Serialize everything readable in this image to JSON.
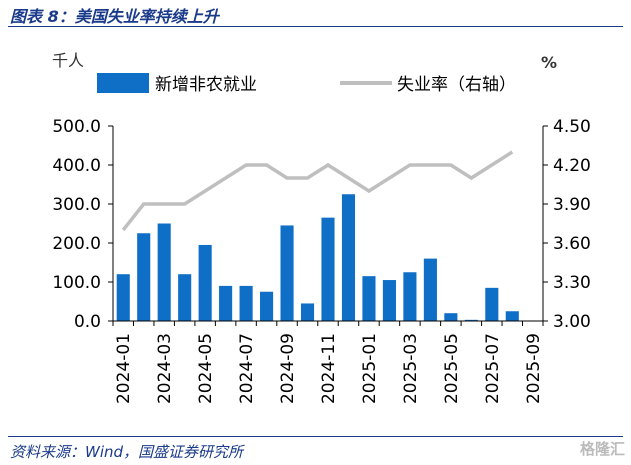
{
  "header": {
    "title": "图表 8：美国失业率持续上升"
  },
  "footer": {
    "source": "资料来源：Wind，国盛证券研究所",
    "watermark": "格隆汇"
  },
  "chart_data": {
    "type": "bar",
    "left_unit": "千人",
    "right_unit": "%",
    "categories": [
      "2024-01",
      "2024-02",
      "2024-03",
      "2024-04",
      "2024-05",
      "2024-06",
      "2024-07",
      "2024-08",
      "2024-09",
      "2024-10",
      "2024-11",
      "2024-12",
      "2025-01",
      "2025-02",
      "2025-03",
      "2025-04",
      "2025-05",
      "2025-06",
      "2025-07",
      "2025-08",
      "2025-09"
    ],
    "tick_labels": [
      "2024-01",
      "2024-03",
      "2024-05",
      "2024-07",
      "2024-09",
      "2024-11",
      "2025-01",
      "2025-03",
      "2025-05",
      "2025-07",
      "2025-09"
    ],
    "series": [
      {
        "name": "新增非农就业",
        "type": "bar",
        "axis": "left",
        "color": "#0f6fc6",
        "values": [
          120,
          225,
          250,
          120,
          195,
          90,
          90,
          75,
          245,
          45,
          265,
          325,
          115,
          105,
          125,
          160,
          20,
          3,
          85,
          25,
          null
        ]
      },
      {
        "name": "失业率（右轴）",
        "type": "line",
        "axis": "right",
        "color": "#bfbfbf",
        "values": [
          3.7,
          3.9,
          3.9,
          3.9,
          4.0,
          4.1,
          4.2,
          4.2,
          4.1,
          4.1,
          4.2,
          4.1,
          4.0,
          4.1,
          4.2,
          4.2,
          4.2,
          4.1,
          4.2,
          4.3,
          null
        ]
      }
    ],
    "left_axis": {
      "min": 0,
      "max": 500,
      "ticks": [
        "0.0",
        "100.0",
        "200.0",
        "300.0",
        "400.0",
        "500.0"
      ]
    },
    "right_axis": {
      "min": 3.0,
      "max": 4.5,
      "ticks": [
        "3.00",
        "3.30",
        "3.60",
        "3.90",
        "4.20",
        "4.50"
      ]
    },
    "legend_position": "top",
    "grid": false
  }
}
